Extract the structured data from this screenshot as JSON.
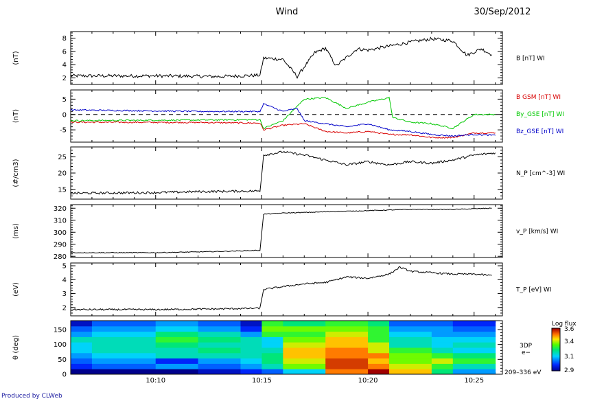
{
  "header": {
    "spacecraft": "Wind",
    "date": "30/Sep/2012"
  },
  "footer": {
    "text": "Produced by CLWeb"
  },
  "colors": {
    "black": "#000000",
    "red": "#d80000",
    "green": "#00c800",
    "blue": "#0000c8"
  },
  "chart_data": [
    {
      "type": "line",
      "ylabel": "(nT)",
      "ylim": [
        1,
        9
      ],
      "yticks": [
        2,
        4,
        6,
        8
      ],
      "series": [
        {
          "name": "B [nT] WI",
          "color": "#000000",
          "x": [
            "10:06",
            "10:10",
            "10:13",
            "10:14:55",
            "10:15:05",
            "10:16",
            "10:16:40",
            "10:17:30",
            "10:18",
            "10:18:30",
            "10:19:30",
            "10:20",
            "10:21",
            "10:22",
            "10:23",
            "10:24",
            "10:24:40",
            "10:25:20",
            "10:25:50"
          ],
          "values": [
            2.3,
            2.3,
            2.2,
            2.4,
            5.0,
            4.8,
            2.2,
            5.8,
            6.5,
            3.8,
            6.4,
            6.2,
            6.8,
            7.4,
            7.9,
            7.6,
            5.4,
            6.4,
            5.5
          ]
        }
      ]
    },
    {
      "type": "line",
      "ylabel": "(nT)",
      "ylim": [
        -9,
        8
      ],
      "yticks": [
        -5,
        0,
        5
      ],
      "zero_line": "dashed",
      "series": [
        {
          "name": "B GSM [nT] WI",
          "color": "#d80000",
          "x": [
            "10:06",
            "10:12",
            "10:14:55",
            "10:15:05",
            "10:16",
            "10:17",
            "10:18",
            "10:19",
            "10:20",
            "10:21",
            "10:22",
            "10:23",
            "10:24",
            "10:25",
            "10:26"
          ],
          "values": [
            -2.5,
            -2.6,
            -2.8,
            -5.0,
            -3.5,
            -3.0,
            -5.5,
            -6.0,
            -5.5,
            -6.5,
            -6.6,
            -7.5,
            -7.5,
            -6.0,
            -6.0
          ]
        },
        {
          "name": "By_GSE [nT] WI",
          "color": "#00c800",
          "x": [
            "10:06",
            "10:12",
            "10:14:55",
            "10:15:05",
            "10:16",
            "10:17",
            "10:18",
            "10:19",
            "10:20",
            "10:21",
            "10:21:10",
            "10:22",
            "10:23",
            "10:24",
            "10:25",
            "10:26"
          ],
          "values": [
            -2.0,
            -1.8,
            -1.7,
            -4.5,
            -2.0,
            5.0,
            5.5,
            2.0,
            4.0,
            5.5,
            -1.0,
            -2.5,
            -3.0,
            -4.5,
            0.0,
            0.0
          ]
        },
        {
          "name": "Bz_GSE [nT] WI",
          "color": "#0000c8",
          "x": [
            "10:06",
            "10:12",
            "10:14:55",
            "10:15:05",
            "10:16",
            "10:16:40",
            "10:17",
            "10:18",
            "10:19",
            "10:20",
            "10:21",
            "10:22",
            "10:23",
            "10:24",
            "10:25",
            "10:26"
          ],
          "values": [
            1.5,
            1.0,
            1.0,
            3.5,
            1.0,
            2.0,
            -2.0,
            -3.0,
            -4.0,
            -3.0,
            -5.0,
            -5.5,
            -6.5,
            -7.0,
            -6.5,
            -6.8
          ]
        }
      ]
    },
    {
      "type": "line",
      "ylabel": "(#/cm3)",
      "ylim": [
        12,
        28
      ],
      "yticks": [
        15,
        20,
        25
      ],
      "series": [
        {
          "name": "N_P [cm^-3] WI",
          "color": "#000000",
          "x": [
            "10:06",
            "10:10",
            "10:12",
            "10:14:55",
            "10:15:05",
            "10:16",
            "10:17",
            "10:18",
            "10:19",
            "10:20",
            "10:21",
            "10:22",
            "10:23",
            "10:24",
            "10:25",
            "10:26"
          ],
          "values": [
            13.8,
            14.0,
            14.3,
            14.5,
            25.5,
            26.5,
            25.5,
            24.0,
            22.5,
            23.5,
            22.5,
            23.5,
            23.0,
            24.0,
            25.5,
            26.2
          ]
        }
      ]
    },
    {
      "type": "line",
      "ylabel": "(ms)",
      "ylim": [
        279,
        323
      ],
      "yticks": [
        280,
        290,
        300,
        310,
        320
      ],
      "series": [
        {
          "name": "v_P [km/s] WI",
          "color": "#000000",
          "x": [
            "10:06",
            "10:10",
            "10:13",
            "10:14:55",
            "10:15:05",
            "10:16",
            "10:18",
            "10:20",
            "10:22",
            "10:24",
            "10:25:50"
          ],
          "values": [
            283,
            283,
            284,
            285,
            315,
            316,
            317,
            318,
            319,
            319,
            320
          ]
        }
      ]
    },
    {
      "type": "line",
      "ylabel": "(eV)",
      "ylim": [
        1.4,
        5.2
      ],
      "yticks": [
        2,
        3,
        4,
        5
      ],
      "series": [
        {
          "name": "T_P [eV] WI",
          "color": "#000000",
          "x": [
            "10:06",
            "10:10",
            "10:13",
            "10:14:55",
            "10:15:05",
            "10:16",
            "10:17",
            "10:18",
            "10:19",
            "10:20",
            "10:21",
            "10:21:30",
            "10:22",
            "10:23",
            "10:24",
            "10:25",
            "10:25:50"
          ],
          "values": [
            1.85,
            1.85,
            1.9,
            1.95,
            3.3,
            3.5,
            3.7,
            3.8,
            4.2,
            4.1,
            4.4,
            4.9,
            4.6,
            4.5,
            4.4,
            4.4,
            4.3
          ]
        }
      ]
    },
    {
      "type": "heatmap",
      "ylabel": "θ (deg)",
      "ylim": [
        0,
        180
      ],
      "yticks": [
        0,
        50,
        100,
        150
      ],
      "right_label_1": "3DP",
      "right_label_2": "e−",
      "right_label_3": "209–336 eV",
      "colorbar": {
        "title": "Log flux",
        "min": 2.9,
        "max": 3.6,
        "ticks": [
          "3.6",
          "3.4",
          "3.1",
          "2.9"
        ]
      },
      "x_bins": [
        "10:06",
        "10:07",
        "10:10",
        "10:12",
        "10:14",
        "10:15",
        "10:16",
        "10:18",
        "10:20",
        "10:21",
        "10:23",
        "10:24",
        "10:26"
      ],
      "y_bins": 10,
      "z": [
        [
          2.9,
          2.9,
          2.9,
          2.95,
          3.0,
          3.05,
          3.15,
          3.5,
          3.6,
          3.45,
          3.25,
          3.1
        ],
        [
          3.0,
          3.05,
          3.1,
          3.05,
          3.1,
          3.2,
          3.35,
          3.55,
          3.5,
          3.4,
          3.3,
          3.2
        ],
        [
          3.05,
          3.1,
          3.0,
          3.1,
          3.15,
          3.25,
          3.4,
          3.55,
          3.45,
          3.35,
          3.4,
          3.3
        ],
        [
          3.1,
          3.15,
          3.2,
          3.2,
          3.2,
          3.25,
          3.45,
          3.5,
          3.5,
          3.35,
          3.3,
          3.25
        ],
        [
          3.15,
          3.2,
          3.2,
          3.25,
          3.2,
          3.2,
          3.45,
          3.5,
          3.4,
          3.3,
          3.2,
          3.15
        ],
        [
          3.15,
          3.2,
          3.25,
          3.2,
          3.2,
          3.15,
          3.4,
          3.45,
          3.4,
          3.2,
          3.15,
          3.2
        ],
        [
          3.2,
          3.2,
          3.3,
          3.25,
          3.2,
          3.15,
          3.35,
          3.45,
          3.3,
          3.2,
          3.15,
          3.15
        ],
        [
          3.1,
          3.15,
          3.25,
          3.2,
          3.1,
          3.3,
          3.3,
          3.4,
          3.3,
          3.15,
          3.1,
          3.1
        ],
        [
          3.05,
          3.1,
          3.15,
          3.1,
          3.0,
          3.35,
          3.35,
          3.35,
          3.3,
          3.1,
          3.1,
          3.05
        ],
        [
          2.95,
          3.05,
          3.1,
          3.05,
          2.95,
          3.3,
          3.25,
          3.3,
          3.25,
          3.05,
          3.05,
          3.0
        ]
      ]
    }
  ],
  "x_axis": {
    "ticks": [
      "10:10",
      "10:15",
      "10:20",
      "10:25"
    ]
  }
}
